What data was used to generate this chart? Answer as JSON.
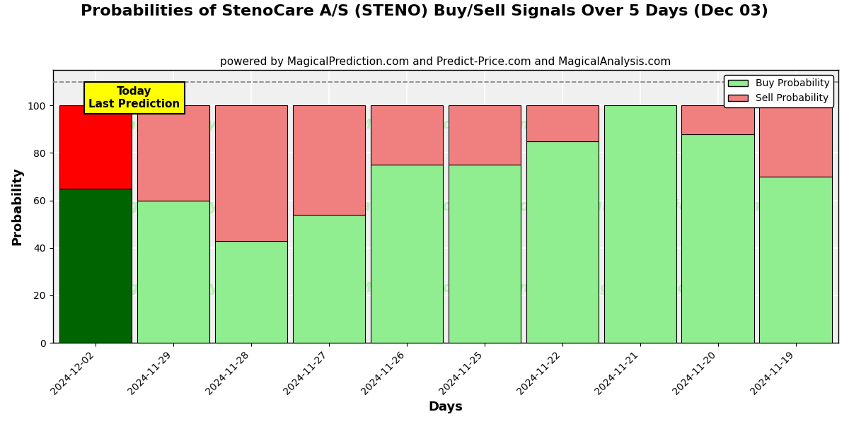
{
  "title": "Probabilities of StenoCare A/S (STENO) Buy/Sell Signals Over 5 Days (Dec 03)",
  "subtitle": "powered by MagicalPrediction.com and Predict-Price.com and MagicalAnalysis.com",
  "xlabel": "Days",
  "ylabel": "Probability",
  "dates": [
    "2024-12-02",
    "2024-11-29",
    "2024-11-28",
    "2024-11-27",
    "2024-11-26",
    "2024-11-25",
    "2024-11-22",
    "2024-11-21",
    "2024-11-20",
    "2024-11-19"
  ],
  "buy_values": [
    65,
    60,
    43,
    54,
    75,
    75,
    85,
    100,
    88,
    70
  ],
  "sell_values": [
    35,
    40,
    57,
    46,
    25,
    25,
    15,
    0,
    12,
    30
  ],
  "buy_color_today": "#006400",
  "sell_color_today": "#FF0000",
  "buy_color_normal": "#90EE90",
  "sell_color_normal": "#F08080",
  "bar_edge_color": "black",
  "bar_edge_width": 0.8,
  "ylim": [
    0,
    115
  ],
  "dashed_line_y": 110,
  "grid_color": "#ffffff",
  "bg_color": "#f0f0f0",
  "today_label": "Today\nLast Prediction",
  "legend_buy": "Buy Probability",
  "legend_sell": "Sell Probability",
  "title_fontsize": 16,
  "subtitle_fontsize": 11,
  "axis_label_fontsize": 13,
  "tick_fontsize": 10,
  "bar_width": 0.93
}
